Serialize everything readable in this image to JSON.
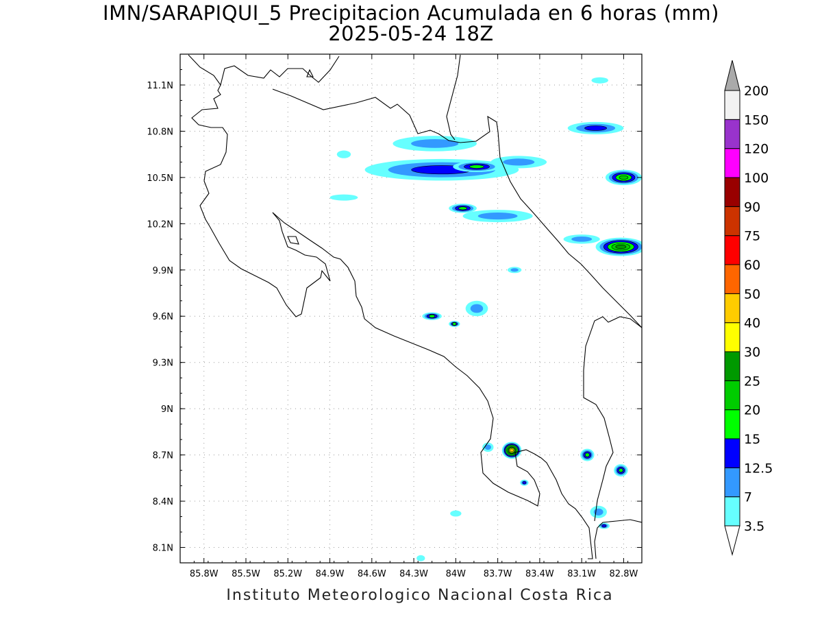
{
  "title": "IMN/SARAPIQUI_5 Precipitacion Acumulada en 6 horas (mm)",
  "subtitle": "2025-05-24 18Z",
  "footer": "Instituto Meteorologico Nacional Costa Rica",
  "map": {
    "lon_range": [
      -85.97,
      -82.67
    ],
    "lat_range": [
      8.0,
      11.3
    ],
    "lon_ticks": [
      {
        "value": -85.8,
        "label": "85.8W"
      },
      {
        "value": -85.5,
        "label": "85.5W"
      },
      {
        "value": -85.2,
        "label": "85.2W"
      },
      {
        "value": -84.9,
        "label": "84.9W"
      },
      {
        "value": -84.6,
        "label": "84.6W"
      },
      {
        "value": -84.3,
        "label": "84.3W"
      },
      {
        "value": -84.0,
        "label": "84W"
      },
      {
        "value": -83.7,
        "label": "83.7W"
      },
      {
        "value": -83.4,
        "label": "83.4W"
      },
      {
        "value": -83.1,
        "label": "83.1W"
      },
      {
        "value": -82.8,
        "label": "82.8W"
      }
    ],
    "lat_ticks": [
      {
        "value": 11.1,
        "label": "11.1N"
      },
      {
        "value": 10.8,
        "label": "10.8N"
      },
      {
        "value": 10.5,
        "label": "10.5N"
      },
      {
        "value": 10.2,
        "label": "10.2N"
      },
      {
        "value": 9.9,
        "label": "9.9N"
      },
      {
        "value": 9.6,
        "label": "9.6N"
      },
      {
        "value": 9.3,
        "label": "9.3N"
      },
      {
        "value": 9.0,
        "label": "9N"
      },
      {
        "value": 8.7,
        "label": "8.7N"
      },
      {
        "value": 8.4,
        "label": "8.4N"
      },
      {
        "value": 8.1,
        "label": "8.1N"
      }
    ],
    "grid": true,
    "gridline_style": "dotted"
  },
  "colorbar": {
    "levels": [
      "3.5",
      "7",
      "12.5",
      "15",
      "20",
      "25",
      "30",
      "40",
      "50",
      "60",
      "75",
      "90",
      "100",
      "120",
      "150",
      "200"
    ],
    "colors": [
      "#66ffff",
      "#3399ff",
      "#0000ff",
      "#00ff00",
      "#00cc00",
      "#009900",
      "#ffff00",
      "#ffcc00",
      "#ff6600",
      "#ff0000",
      "#cc3300",
      "#990000",
      "#ff00ff",
      "#9933cc",
      "#f2f2f2",
      "#aaaaaa"
    ]
  },
  "precip_cells": [
    {
      "lon": -84.1,
      "lat": 10.55,
      "rx": 0.55,
      "ry": 0.07,
      "level": 2
    },
    {
      "lon": -83.85,
      "lat": 10.57,
      "rx": 0.17,
      "ry": 0.035,
      "level": 3
    },
    {
      "lon": -84.15,
      "lat": 10.72,
      "rx": 0.3,
      "ry": 0.05,
      "level": 1
    },
    {
      "lon": -83.55,
      "lat": 10.6,
      "rx": 0.2,
      "ry": 0.04,
      "level": 1
    },
    {
      "lon": -83.95,
      "lat": 10.3,
      "rx": 0.1,
      "ry": 0.03,
      "level": 3
    },
    {
      "lon": -83.7,
      "lat": 10.25,
      "rx": 0.25,
      "ry": 0.04,
      "level": 1
    },
    {
      "lon": -83.0,
      "lat": 10.82,
      "rx": 0.2,
      "ry": 0.04,
      "level": 2
    },
    {
      "lon": -82.8,
      "lat": 10.5,
      "rx": 0.13,
      "ry": 0.05,
      "level": 4
    },
    {
      "lon": -82.82,
      "lat": 10.05,
      "rx": 0.18,
      "ry": 0.06,
      "level": 5
    },
    {
      "lon": -83.1,
      "lat": 10.1,
      "rx": 0.13,
      "ry": 0.03,
      "level": 1
    },
    {
      "lon": -84.17,
      "lat": 9.6,
      "rx": 0.07,
      "ry": 0.025,
      "level": 3
    },
    {
      "lon": -84.01,
      "lat": 9.55,
      "rx": 0.04,
      "ry": 0.02,
      "level": 3
    },
    {
      "lon": -83.85,
      "lat": 9.65,
      "rx": 0.08,
      "ry": 0.05,
      "level": 1
    },
    {
      "lon": -83.58,
      "lat": 9.9,
      "rx": 0.05,
      "ry": 0.02,
      "level": 1
    },
    {
      "lon": -83.6,
      "lat": 8.73,
      "rx": 0.07,
      "ry": 0.055,
      "level": 7
    },
    {
      "lon": -83.77,
      "lat": 8.75,
      "rx": 0.04,
      "ry": 0.03,
      "level": 1
    },
    {
      "lon": -83.06,
      "lat": 8.7,
      "rx": 0.05,
      "ry": 0.04,
      "level": 3
    },
    {
      "lon": -82.82,
      "lat": 8.6,
      "rx": 0.05,
      "ry": 0.04,
      "level": 3
    },
    {
      "lon": -83.51,
      "lat": 8.52,
      "rx": 0.03,
      "ry": 0.02,
      "level": 2
    },
    {
      "lon": -82.94,
      "lat": 8.24,
      "rx": 0.04,
      "ry": 0.02,
      "level": 2
    },
    {
      "lon": -82.98,
      "lat": 8.33,
      "rx": 0.06,
      "ry": 0.04,
      "level": 1
    },
    {
      "lon": -84.0,
      "lat": 8.32,
      "rx": 0.04,
      "ry": 0.02,
      "level": 0
    },
    {
      "lon": -84.25,
      "lat": 8.03,
      "rx": 0.03,
      "ry": 0.02,
      "level": 0
    },
    {
      "lon": -84.8,
      "lat": 10.37,
      "rx": 0.1,
      "ry": 0.02,
      "level": 0
    },
    {
      "lon": -84.8,
      "lat": 10.65,
      "rx": 0.05,
      "ry": 0.025,
      "level": 0
    },
    {
      "lon": -82.97,
      "lat": 11.13,
      "rx": 0.06,
      "ry": 0.02,
      "level": 0
    }
  ]
}
